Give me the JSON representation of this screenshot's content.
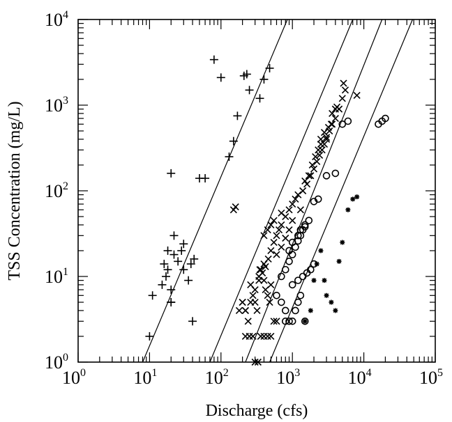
{
  "chart_data": {
    "type": "scatter",
    "title": "",
    "xlabel": "Discharge (cfs)",
    "ylabel": "TSS Concentration (mg/L)",
    "x_scale": "log",
    "y_scale": "log",
    "xlim": [
      1,
      100000
    ],
    "ylim": [
      1,
      10000
    ],
    "x_ticks": [
      {
        "base": "10",
        "exp": "0"
      },
      {
        "base": "10",
        "exp": "1"
      },
      {
        "base": "10",
        "exp": "2"
      },
      {
        "base": "10",
        "exp": "3"
      },
      {
        "base": "10",
        "exp": "4"
      },
      {
        "base": "10",
        "exp": "5"
      }
    ],
    "y_ticks": [
      {
        "base": "10",
        "exp": "0"
      },
      {
        "base": "10",
        "exp": "1"
      },
      {
        "base": "10",
        "exp": "2"
      },
      {
        "base": "10",
        "exp": "3"
      },
      {
        "base": "10",
        "exp": "4"
      }
    ],
    "grid": false,
    "legend": "none",
    "reference_lines": [
      {
        "x": [
          8,
          850
        ],
        "y": [
          1,
          10000
        ]
      },
      {
        "x": [
          70,
          7000
        ],
        "y": [
          1,
          10000
        ]
      },
      {
        "x": [
          220,
          18000
        ],
        "y": [
          1,
          10000
        ]
      },
      {
        "x": [
          480,
          48000
        ],
        "y": [
          1,
          10000
        ]
      }
    ],
    "series": [
      {
        "marker": "plus",
        "x": [
          10,
          11,
          15,
          16,
          18,
          17,
          18,
          20,
          20,
          22,
          22,
          25,
          28,
          30,
          30,
          35,
          38,
          40,
          42,
          20,
          50,
          60,
          80,
          100,
          130,
          150,
          170,
          210,
          230,
          250,
          350,
          400,
          480,
          20
        ],
        "y": [
          2,
          6,
          8,
          14,
          20,
          10,
          12,
          7,
          5,
          30,
          18,
          15,
          20,
          12,
          24,
          9,
          14,
          3,
          16,
          160,
          140,
          140,
          3400,
          2100,
          250,
          380,
          750,
          2200,
          2300,
          1500,
          1200,
          2000,
          2700,
          5
        ]
      },
      {
        "marker": "x",
        "x": [
          150,
          160,
          200,
          220,
          240,
          260,
          280,
          300,
          320,
          340,
          360,
          400,
          420,
          450,
          480,
          500,
          220,
          250,
          280,
          300,
          330,
          360,
          400,
          450,
          500,
          550,
          600,
          220,
          260,
          300,
          340,
          380,
          420,
          460,
          500,
          550,
          600,
          650,
          700,
          800,
          900,
          1000,
          1100,
          1200,
          1400,
          1600,
          1800,
          2000,
          2200,
          2400,
          2600,
          2800,
          3000,
          3300,
          3600,
          4000,
          4500,
          5000,
          5200,
          5500,
          8000,
          180,
          200,
          350,
          400,
          600,
          700,
          800,
          900,
          1000,
          1300,
          1500,
          1700,
          1900,
          2100,
          2300,
          2500,
          2800,
          3200,
          3600,
          4000,
          2500,
          3000,
          3500,
          4200,
          400,
          450,
          500,
          550,
          700
        ],
        "y": [
          60,
          65,
          5,
          4,
          3,
          8,
          6,
          5,
          4,
          10,
          12,
          9,
          7,
          6,
          5,
          8,
          2,
          2,
          2,
          1,
          1,
          2,
          2,
          2,
          2,
          3,
          3,
          4,
          5,
          7,
          9,
          11,
          13,
          16,
          20,
          25,
          30,
          35,
          40,
          50,
          60,
          70,
          80,
          90,
          100,
          120,
          150,
          180,
          220,
          260,
          300,
          350,
          400,
          500,
          600,
          700,
          900,
          1200,
          1800,
          1500,
          1300,
          4,
          5,
          12,
          14,
          18,
          22,
          28,
          35,
          45,
          60,
          130,
          150,
          200,
          250,
          300,
          400,
          480,
          550,
          800,
          900,
          350,
          420,
          600,
          950,
          30,
          35,
          40,
          45,
          55
        ]
      },
      {
        "marker": "circle",
        "x": [
          600,
          700,
          800,
          900,
          1000,
          1100,
          1200,
          1300,
          700,
          800,
          900,
          1000,
          1100,
          1200,
          1300,
          1400,
          1500,
          1700,
          2000,
          2300,
          1000,
          1200,
          1400,
          1600,
          1800,
          2000,
          3000,
          4000,
          5000,
          6000,
          900,
          1000,
          1200,
          1300,
          1500,
          16000,
          18000,
          20000,
          1500,
          800
        ],
        "y": [
          6,
          5,
          4,
          3,
          3,
          4,
          5,
          6,
          10,
          12,
          15,
          18,
          22,
          26,
          30,
          35,
          40,
          45,
          75,
          80,
          8,
          9,
          10,
          11,
          12,
          14,
          150,
          160,
          600,
          650,
          20,
          25,
          30,
          35,
          38,
          600,
          650,
          700,
          3,
          3
        ]
      },
      {
        "marker": "star",
        "x": [
          1500,
          1800,
          2000,
          2200,
          2500,
          2800,
          3000,
          3500,
          4000,
          4500,
          5000,
          6000,
          7000,
          8000
        ],
        "y": [
          3,
          4,
          9,
          14,
          20,
          9,
          6,
          5,
          4,
          15,
          25,
          60,
          80,
          85
        ]
      }
    ]
  }
}
